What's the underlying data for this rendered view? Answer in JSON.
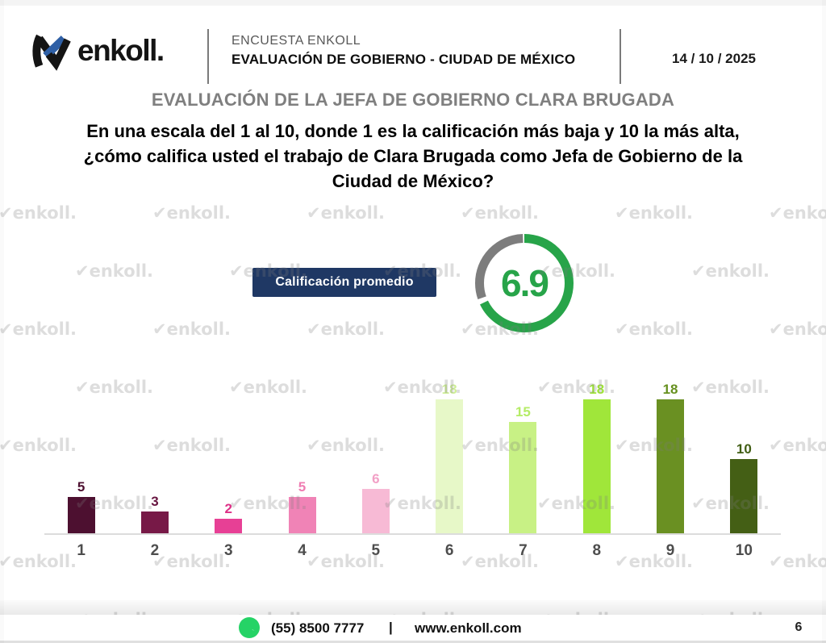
{
  "header": {
    "brand": "enkoll.",
    "brand_accent_color": "#2e5fa5",
    "kicker": "ENCUESTA ENKOLL",
    "title": "EVALUACIÓN DE GOBIERNO - CIUDAD DE MÉXICO",
    "date": "14 / 10 / 2025"
  },
  "page": {
    "section_title": "EVALUACIÓN DE LA JEFA DE GOBIERNO CLARA BRUGADA",
    "question": "En una escala del 1 al 10, donde 1 es la calificación más baja y 10 la más alta,\n¿cómo califica usted el trabajo de Clara Brugada como Jefa de Gobierno de la\nCiudad de México?"
  },
  "average": {
    "label": "Calificación promedio",
    "value": "6.9",
    "fraction": 0.69,
    "badge_bg": "#1f3864",
    "ring_green": "#27a449",
    "ring_gray": "#7d7d7d"
  },
  "chart_data": {
    "type": "bar",
    "title": "",
    "xlabel": "",
    "ylabel": "",
    "categories": [
      "1",
      "2",
      "3",
      "4",
      "5",
      "6",
      "7",
      "8",
      "9",
      "10"
    ],
    "values": [
      5,
      3,
      2,
      5,
      6,
      18,
      15,
      18,
      18,
      10
    ],
    "bar_colors": [
      "#4d1030",
      "#771947",
      "#e74095",
      "#f083b6",
      "#f7bad5",
      "#e7f8c8",
      "#c8f185",
      "#a0e63a",
      "#6a9022",
      "#445f15"
    ],
    "label_colors": [
      "#4d1030",
      "#671540",
      "#dd3187",
      "#ef7db2",
      "#f2a0c6",
      "#cdee95",
      "#b5ec66",
      "#9fe636",
      "#66901f",
      "#415e14"
    ],
    "ylim": [
      0,
      20
    ],
    "grid": false,
    "value_labels": true,
    "legend": "none",
    "baseline_color": "#dcdcdc"
  },
  "watermark": {
    "text": "enkoll."
  },
  "footer": {
    "phone": "(55) 8500 7777",
    "separator": "|",
    "website": "www.enkoll.com",
    "page_number": "6",
    "whatsapp_green": "#25d366"
  }
}
